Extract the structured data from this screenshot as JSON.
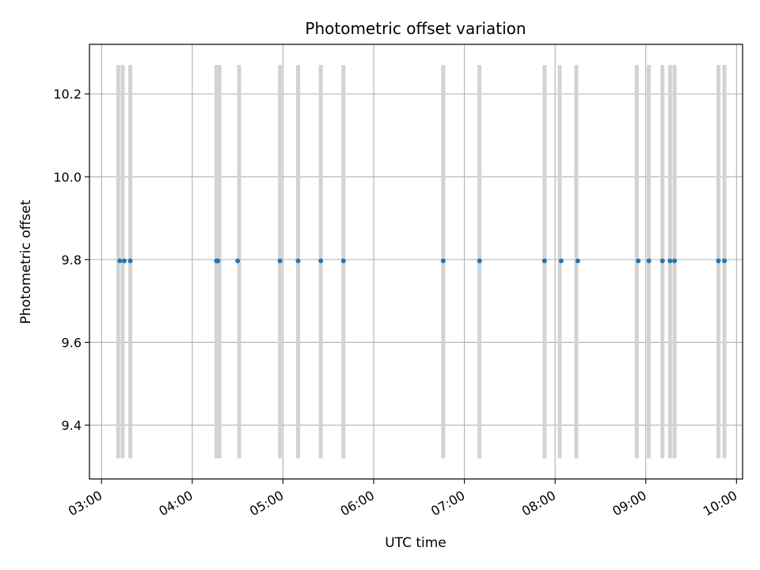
{
  "chart_data": {
    "type": "scatter",
    "title": "Photometric offset variation",
    "xlabel": "UTC time",
    "ylabel": "Photometric offset",
    "x_tick_labels": [
      "03:00",
      "04:00",
      "05:00",
      "06:00",
      "07:00",
      "08:00",
      "09:00",
      "10:00"
    ],
    "y_tick_labels": [
      "9.4",
      "9.6",
      "9.8",
      "10.0",
      "10.2"
    ],
    "y_ticks": [
      9.4,
      9.6,
      9.8,
      10.0,
      10.2
    ],
    "xlim": [
      "02:52",
      "10:04"
    ],
    "ylim": [
      9.27,
      10.32
    ],
    "grid": true,
    "y_value": 9.797,
    "x": [
      "03:12",
      "03:15",
      "03:19",
      "04:16",
      "04:17",
      "04:30",
      "04:58",
      "05:10",
      "05:25",
      "05:40",
      "06:46",
      "07:10",
      "07:53",
      "08:04",
      "08:15",
      "08:55",
      "09:02",
      "09:11",
      "09:16",
      "09:19",
      "09:48",
      "09:52"
    ],
    "vlines": [
      "03:11",
      "03:14",
      "03:19",
      "04:16",
      "04:18",
      "04:31",
      "04:58",
      "05:10",
      "05:25",
      "05:40",
      "06:46",
      "07:10",
      "07:53",
      "08:03",
      "08:14",
      "08:54",
      "09:02",
      "09:11",
      "09:16",
      "09:19",
      "09:48",
      "09:52"
    ],
    "vline_range": [
      9.32,
      10.27
    ],
    "colors": {
      "points": "#1f77b4",
      "vlines": "#d3d3d3",
      "grid": "#b0b0b0"
    }
  }
}
